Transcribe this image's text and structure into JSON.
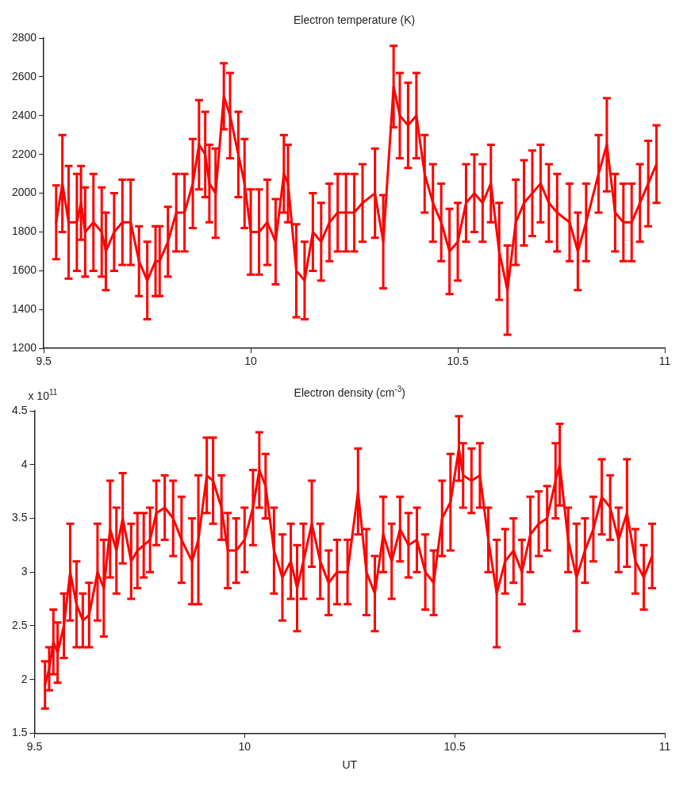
{
  "chart_data": [
    {
      "type": "line",
      "title": "Electron temperature (K)",
      "xlim": [
        9.5,
        11
      ],
      "xticks": [
        9.5,
        10,
        10.5,
        11
      ],
      "ylim": [
        1200,
        2800
      ],
      "yticks": [
        1200,
        1400,
        1600,
        1800,
        2000,
        2200,
        2400,
        2600,
        2800
      ],
      "grid": false,
      "x": [
        9.53,
        9.545,
        9.56,
        9.58,
        9.59,
        9.6,
        9.62,
        9.64,
        9.65,
        9.67,
        9.69,
        9.71,
        9.73,
        9.75,
        9.77,
        9.78,
        9.8,
        9.82,
        9.84,
        9.86,
        9.875,
        9.89,
        9.9,
        9.915,
        9.935,
        9.95,
        9.97,
        9.985,
        10,
        10.02,
        10.04,
        10.06,
        10.08,
        10.09,
        10.11,
        10.13,
        10.15,
        10.17,
        10.19,
        10.21,
        10.23,
        10.25,
        10.27,
        10.3,
        10.32,
        10.345,
        10.36,
        10.38,
        10.4,
        10.42,
        10.44,
        10.46,
        10.48,
        10.5,
        10.52,
        10.54,
        10.56,
        10.58,
        10.6,
        10.62,
        10.64,
        10.66,
        10.68,
        10.7,
        10.72,
        10.74,
        10.77,
        10.79,
        10.81,
        10.84,
        10.86,
        10.88,
        10.9,
        10.92,
        10.94,
        10.96,
        10.98
      ],
      "series": [
        {
          "color": "#ff0000",
          "values": [
            1850,
            2050,
            1850,
            1850,
            1950,
            1800,
            1850,
            1800,
            1700,
            1800,
            1850,
            1850,
            1650,
            1550,
            1650,
            1650,
            1750,
            1900,
            1900,
            2050,
            2250,
            2200,
            2050,
            2000,
            2500,
            2400,
            2200,
            2050,
            1800,
            1800,
            1850,
            1750,
            2100,
            2050,
            1600,
            1550,
            1800,
            1750,
            1850,
            1900,
            1900,
            1900,
            1950,
            2000,
            1750,
            2550,
            2400,
            2350,
            2400,
            2100,
            1950,
            1850,
            1700,
            1750,
            1950,
            2000,
            1950,
            2050,
            1700,
            1500,
            1850,
            1950,
            2000,
            2050,
            1950,
            1900,
            1850,
            1700,
            1850,
            2100,
            2250,
            1900,
            1850,
            1850,
            1950,
            2050,
            2150
          ],
          "errors": [
            190,
            250,
            290,
            250,
            190,
            230,
            250,
            230,
            200,
            200,
            220,
            220,
            180,
            200,
            180,
            180,
            180,
            200,
            200,
            230,
            230,
            220,
            200,
            230,
            170,
            220,
            220,
            230,
            220,
            220,
            220,
            220,
            200,
            200,
            240,
            200,
            200,
            200,
            200,
            200,
            200,
            200,
            200,
            230,
            240,
            210,
            220,
            220,
            220,
            200,
            200,
            200,
            220,
            200,
            200,
            200,
            200,
            200,
            250,
            230,
            220,
            220,
            220,
            200,
            200,
            200,
            200,
            200,
            200,
            200,
            240,
            200,
            200,
            200,
            200,
            220,
            200
          ]
        }
      ]
    },
    {
      "type": "line",
      "title": "Electron density (cm$^{-3}$)",
      "xlabel": "UT",
      "annotations": [
        "x 10$^{11}$"
      ],
      "xlim": [
        9.5,
        11
      ],
      "xticks": [
        9.5,
        10,
        10.5,
        11
      ],
      "ylim": [
        1.5,
        4.5
      ],
      "yticks": [
        1.5,
        2,
        2.5,
        3,
        3.5,
        4,
        4.5
      ],
      "grid": false,
      "x": [
        9.525,
        9.535,
        9.545,
        9.555,
        9.57,
        9.585,
        9.6,
        9.615,
        9.63,
        9.65,
        9.665,
        9.68,
        9.695,
        9.71,
        9.73,
        9.745,
        9.76,
        9.775,
        9.79,
        9.81,
        9.83,
        9.85,
        9.875,
        9.89,
        9.91,
        9.925,
        9.945,
        9.96,
        9.98,
        10,
        10.02,
        10.035,
        10.05,
        10.07,
        10.09,
        10.11,
        10.125,
        10.14,
        10.16,
        10.18,
        10.2,
        10.22,
        10.245,
        10.27,
        10.29,
        10.31,
        10.33,
        10.35,
        10.37,
        10.39,
        10.41,
        10.43,
        10.45,
        10.47,
        10.49,
        10.51,
        10.52,
        10.54,
        10.56,
        10.58,
        10.6,
        10.62,
        10.64,
        10.66,
        10.68,
        10.7,
        10.72,
        10.74,
        10.75,
        10.77,
        10.79,
        10.81,
        10.83,
        10.85,
        10.87,
        10.89,
        10.91,
        10.93,
        10.95,
        10.97
      ],
      "series": [
        {
          "color": "#ff0000",
          "values": [
            1.95,
            2.1,
            2.35,
            2.25,
            2.5,
            3,
            2.7,
            2.55,
            2.6,
            3,
            2.85,
            3.4,
            3.2,
            3.5,
            3.1,
            3.2,
            3.25,
            3.3,
            3.55,
            3.6,
            3.5,
            3.3,
            3.1,
            3.3,
            3.9,
            3.85,
            3.6,
            3.2,
            3.2,
            3.3,
            3.6,
            3.95,
            3.8,
            3.2,
            2.95,
            3.1,
            2.85,
            3.1,
            3.45,
            3.1,
            2.9,
            3,
            3,
            3.75,
            3,
            2.8,
            3.35,
            3.1,
            3.4,
            3.25,
            3.3,
            3,
            2.9,
            3.5,
            3.65,
            4.15,
            3.9,
            3.85,
            3.9,
            3.3,
            2.8,
            3.1,
            3.2,
            3,
            3.35,
            3.45,
            3.5,
            3.85,
            4,
            3.3,
            2.95,
            3.2,
            3.4,
            3.7,
            3.6,
            3.3,
            3.55,
            3.1,
            2.95,
            3.15
          ],
          "errors": [
            0.22,
            0.2,
            0.3,
            0.28,
            0.3,
            0.45,
            0.4,
            0.25,
            0.3,
            0.45,
            0.45,
            0.45,
            0.4,
            0.42,
            0.35,
            0.35,
            0.3,
            0.3,
            0.3,
            0.3,
            0.35,
            0.4,
            0.4,
            0.6,
            0.35,
            0.4,
            0.3,
            0.35,
            0.3,
            0.3,
            0.35,
            0.35,
            0.3,
            0.4,
            0.4,
            0.35,
            0.4,
            0.35,
            0.4,
            0.35,
            0.3,
            0.3,
            0.3,
            0.4,
            0.4,
            0.35,
            0.35,
            0.35,
            0.3,
            0.3,
            0.3,
            0.35,
            0.3,
            0.35,
            0.45,
            0.3,
            0.3,
            0.3,
            0.3,
            0.3,
            0.5,
            0.3,
            0.3,
            0.3,
            0.35,
            0.3,
            0.3,
            0.35,
            0.38,
            0.3,
            0.5,
            0.3,
            0.3,
            0.35,
            0.3,
            0.3,
            0.5,
            0.3,
            0.3,
            0.3
          ]
        }
      ]
    }
  ]
}
